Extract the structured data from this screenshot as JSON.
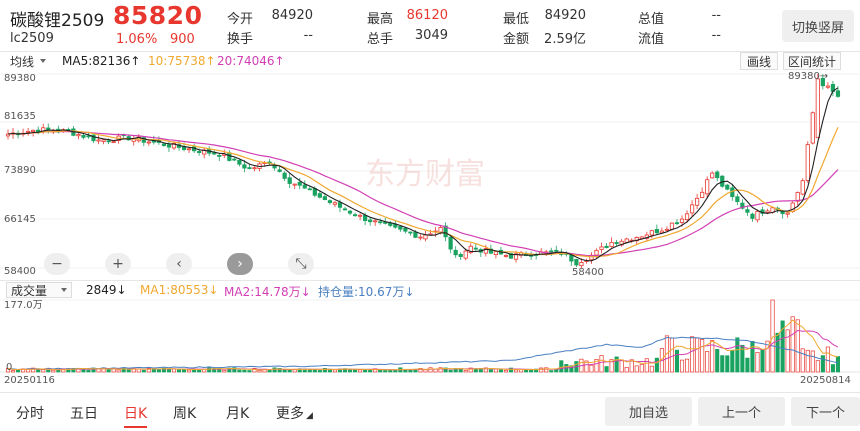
{
  "header": {
    "name": "碳酸锂2509",
    "price": "85820",
    "code": "lc2509",
    "change_pct": "1.06%",
    "change": "900",
    "quotes": [
      {
        "label": "今开",
        "value": "84920",
        "red": false
      },
      {
        "label": "最高",
        "value": "86120",
        "red": true
      },
      {
        "label": "最低",
        "value": "84920",
        "red": false
      },
      {
        "label": "总值",
        "value": "--",
        "red": false
      },
      {
        "label": "换手",
        "value": "--",
        "red": false
      },
      {
        "label": "总手",
        "value": "3049",
        "red": false
      },
      {
        "label": "金额",
        "value": "2.59亿",
        "red": false
      },
      {
        "label": "流值",
        "value": "--",
        "red": false
      }
    ],
    "switch_label": "切换竖屏"
  },
  "indicators": {
    "main_select": "均线",
    "ma5": "MA5:82136↑",
    "ma10": "10:75738↑",
    "ma20": "20:74046↑",
    "draw_label": "画线",
    "range_label": "区间统计"
  },
  "price_axis": [
    "89380",
    "81635",
    "73890",
    "66145",
    "58400"
  ],
  "annotations": {
    "high": "89380→",
    "low": "58400"
  },
  "watermark": "东方财富",
  "controls": [
    "−",
    "+",
    "‹",
    "›",
    "⤡"
  ],
  "volume": {
    "select": "成交量",
    "vol": "2849↓",
    "ma1": "MA1:80553↓",
    "ma2": "MA2:14.78万↓",
    "oi": "持仓量:10.67万↓",
    "axis_top": "177.0万",
    "axis_zero": "0",
    "date_start": "20250116",
    "date_end": "20250814"
  },
  "colors": {
    "up": "#e8372e",
    "down": "#1aa260",
    "ma5": "#222222",
    "ma10": "#f0a830",
    "ma20": "#d23fb4",
    "oi": "#4a7fc1"
  },
  "tabs": [
    "分时",
    "五日",
    "日K",
    "周K",
    "月K",
    "更多"
  ],
  "active_tab": "日K",
  "buttons": {
    "add": "加自选",
    "prev": "上一个",
    "next": "下一个"
  },
  "chart_data": {
    "type": "candlestick",
    "ylim": [
      58400,
      89380
    ],
    "x_range": [
      "20250116",
      "20250814"
    ],
    "shape": [
      [
        0,
        79800
      ],
      [
        6,
        80500
      ],
      [
        12,
        80200
      ],
      [
        18,
        78800
      ],
      [
        24,
        79200
      ],
      [
        30,
        78300
      ],
      [
        36,
        77400
      ],
      [
        42,
        76600
      ],
      [
        48,
        74200
      ],
      [
        52,
        75400
      ],
      [
        56,
        72300
      ],
      [
        60,
        70600
      ],
      [
        64,
        68900
      ],
      [
        70,
        66600
      ],
      [
        76,
        64800
      ],
      [
        82,
        63500
      ],
      [
        86,
        64700
      ],
      [
        89,
        60100
      ],
      [
        92,
        61800
      ],
      [
        96,
        60800
      ],
      [
        100,
        60300
      ],
      [
        105,
        60800
      ],
      [
        110,
        60800
      ],
      [
        113,
        59300
      ],
      [
        116,
        60400
      ],
      [
        120,
        62500
      ],
      [
        126,
        63600
      ],
      [
        130,
        64600
      ],
      [
        134,
        66300
      ],
      [
        137,
        69600
      ],
      [
        140,
        73600
      ],
      [
        144,
        69600
      ],
      [
        148,
        66700
      ],
      [
        152,
        68300
      ],
      [
        155,
        67100
      ],
      [
        158,
        72300
      ],
      [
        161,
        88600
      ],
      [
        163,
        87100
      ],
      [
        165,
        85800
      ]
    ],
    "oi_shape": [
      [
        0,
        4
      ],
      [
        60,
        8
      ],
      [
        100,
        16
      ],
      [
        110,
        28
      ],
      [
        119,
        38
      ],
      [
        126,
        34
      ],
      [
        131,
        48
      ],
      [
        140,
        47
      ],
      [
        146,
        44
      ],
      [
        150,
        40
      ],
      [
        156,
        30
      ],
      [
        160,
        21
      ],
      [
        165,
        12
      ]
    ]
  }
}
